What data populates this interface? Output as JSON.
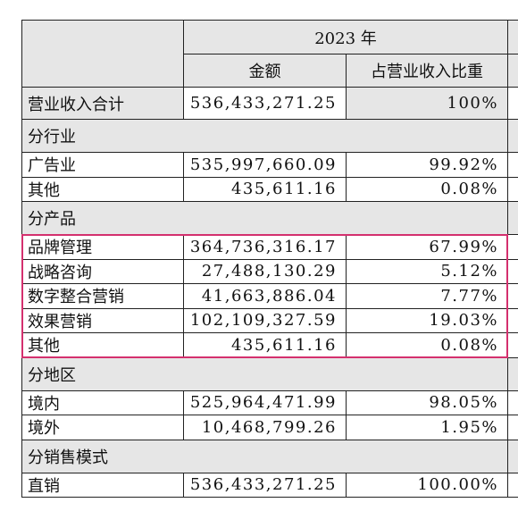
{
  "table": {
    "header": {
      "year": "2023 年",
      "columns": [
        "金额",
        "占营业收入比重"
      ]
    },
    "rows": [
      {
        "label": "营业收入合计",
        "amount": "536,433,271.25",
        "share": "100%"
      },
      {
        "section": "分行业"
      },
      {
        "label": "广告业",
        "amount": "535,997,660.09",
        "share": "99.92%"
      },
      {
        "label": "其他",
        "amount": "435,611.16",
        "share": "0.08%"
      },
      {
        "section": "分产品"
      },
      {
        "label": "品牌管理",
        "amount": "364,736,316.17",
        "share": "67.99%"
      },
      {
        "label": "战略咨询",
        "amount": "27,488,130.29",
        "share": "5.12%"
      },
      {
        "label": "数字整合营销",
        "amount": "41,663,886.04",
        "share": "7.77%"
      },
      {
        "label": "效果营销",
        "amount": "102,109,327.59",
        "share": "19.03%"
      },
      {
        "label": "其他",
        "amount": "435,611.16",
        "share": "0.08%"
      },
      {
        "section": "分地区"
      },
      {
        "label": "境内",
        "amount": "525,964,471.99",
        "share": "98.05%"
      },
      {
        "label": "境外",
        "amount": "10,468,799.26",
        "share": "1.95%"
      },
      {
        "section": "分销售模式"
      },
      {
        "label": "直销",
        "amount": "536,433,271.25",
        "share": "100.00%"
      }
    ]
  }
}
